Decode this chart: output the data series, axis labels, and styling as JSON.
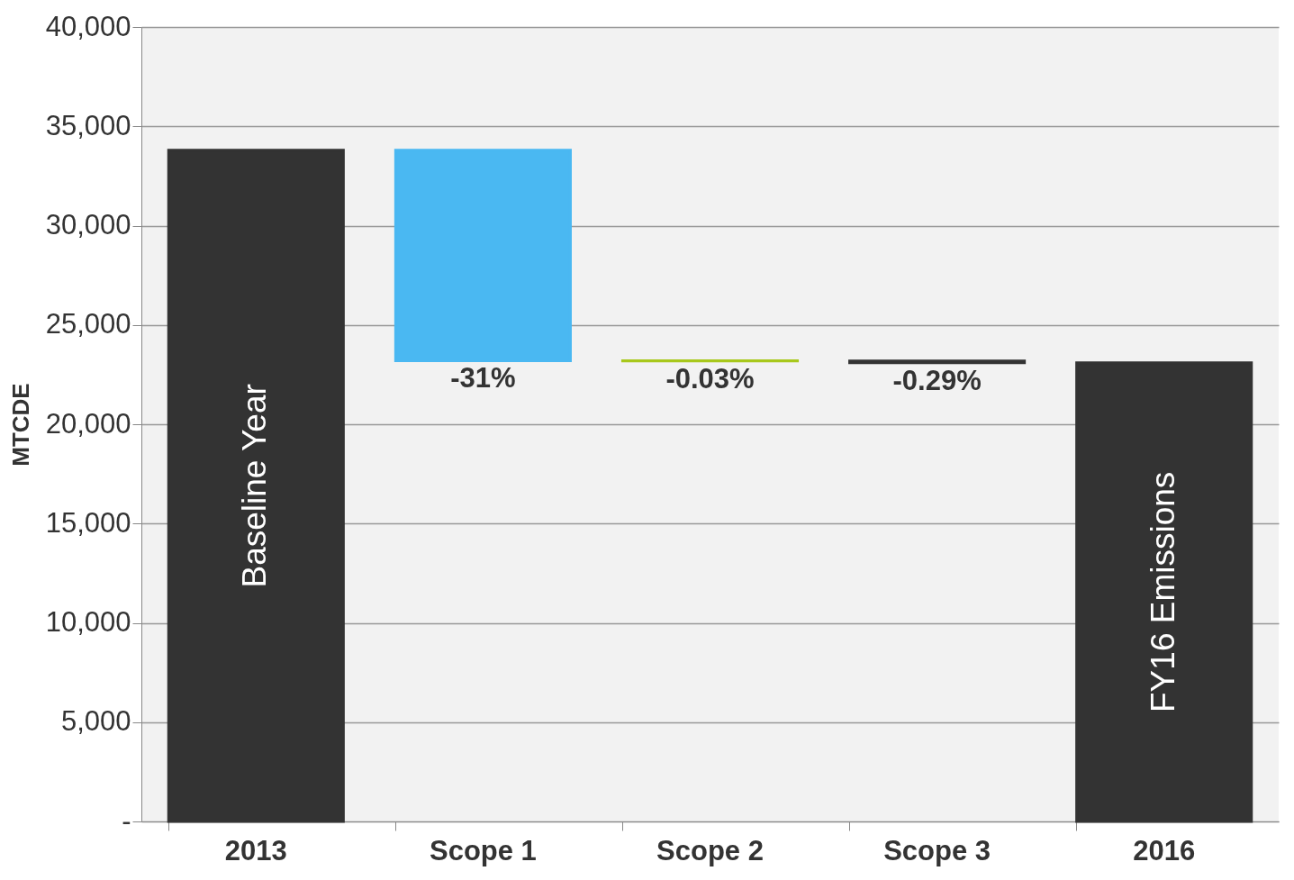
{
  "chart_data": {
    "type": "bar",
    "ylabel": "MTCDE",
    "categories": [
      "2013",
      "Scope 1",
      "Scope 2",
      "Scope 3",
      "2016"
    ],
    "base": [
      0,
      33800,
      23200,
      23190,
      0
    ],
    "values": [
      33800,
      -10600,
      -10,
      -90,
      23100
    ],
    "colors": [
      "#333333",
      "#4ab8f2",
      "#a8c81c",
      "#333333",
      "#333333"
    ],
    "annotations": [
      "Baseline Year",
      "FY16 Emissions",
      {
        "text": "-31%",
        "x": "Scope 1",
        "y": 23200
      },
      {
        "text": "-0.03%",
        "x": "Scope 2",
        "y": 23190
      },
      {
        "text": "-0.29%",
        "x": "Scope 3",
        "y": 23100
      }
    ],
    "ylim": [
      0,
      40000
    ],
    "yticks": [
      {
        "value": 0,
        "label": "-"
      },
      {
        "value": 5000,
        "label": "5,000"
      },
      {
        "value": 10000,
        "label": "10,000"
      },
      {
        "value": 15000,
        "label": "15,000"
      },
      {
        "value": 20000,
        "label": "20,000"
      },
      {
        "value": 25000,
        "label": "25,000"
      },
      {
        "value": 30000,
        "label": "30,000"
      },
      {
        "value": 35000,
        "label": "35,000"
      },
      {
        "value": 40000,
        "label": "40,000"
      }
    ],
    "grid": "y"
  }
}
